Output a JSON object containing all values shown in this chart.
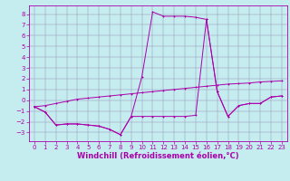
{
  "xlabel": "Windchill (Refroidissement éolien,°C)",
  "background_color": "#c5ecee",
  "line_color": "#aa00aa",
  "grid_color": "#9999bb",
  "x_ticks": [
    0,
    1,
    2,
    3,
    4,
    5,
    6,
    7,
    8,
    9,
    10,
    11,
    12,
    13,
    14,
    15,
    16,
    17,
    18,
    19,
    20,
    21,
    22,
    23
  ],
  "y_ticks": [
    -3,
    -2,
    -1,
    0,
    1,
    2,
    3,
    4,
    5,
    6,
    7,
    8
  ],
  "xlim": [
    -0.5,
    23.5
  ],
  "ylim": [
    -3.8,
    8.8
  ],
  "series_diagonal_x": [
    0,
    1,
    2,
    3,
    4,
    5,
    6,
    7,
    8,
    9,
    10,
    11,
    12,
    13,
    14,
    15,
    16,
    17,
    18,
    19,
    20,
    21,
    22,
    23
  ],
  "series_diagonal_y": [
    -0.6,
    -0.5,
    -0.3,
    -0.1,
    0.1,
    0.2,
    0.3,
    0.4,
    0.5,
    0.6,
    0.7,
    0.8,
    0.9,
    1.0,
    1.1,
    1.2,
    1.3,
    1.4,
    1.5,
    1.55,
    1.6,
    1.7,
    1.75,
    1.8
  ],
  "series_peak1_x": [
    0,
    1,
    2,
    3,
    4,
    5,
    6,
    7,
    8,
    9,
    10,
    11,
    12,
    13,
    14,
    15,
    16,
    17,
    18,
    19,
    20,
    21,
    22,
    23
  ],
  "series_peak1_y": [
    -0.6,
    -1.1,
    -2.3,
    -2.2,
    -2.2,
    -2.3,
    -2.4,
    -2.7,
    -3.2,
    -1.5,
    2.2,
    8.2,
    7.8,
    7.8,
    7.8,
    7.7,
    7.5,
    0.8,
    -1.5,
    -0.5,
    -0.3,
    -0.3,
    0.3,
    0.4
  ],
  "series_peak2_x": [
    0,
    1,
    2,
    3,
    4,
    5,
    6,
    7,
    8,
    9,
    10,
    11,
    12,
    13,
    14,
    15,
    16,
    17,
    18,
    19,
    20,
    21,
    22,
    23
  ],
  "series_peak2_y": [
    -0.6,
    -1.1,
    -2.3,
    -2.2,
    -2.2,
    -2.3,
    -2.4,
    -2.7,
    -3.2,
    -1.5,
    -1.5,
    -1.5,
    -1.5,
    -1.5,
    -1.5,
    -1.4,
    7.5,
    0.8,
    -1.5,
    -0.5,
    -0.3,
    -0.3,
    0.3,
    0.4
  ],
  "tick_fontsize": 5.0,
  "xlabel_fontsize": 6.0,
  "linewidth": 0.7,
  "markersize": 2.0
}
